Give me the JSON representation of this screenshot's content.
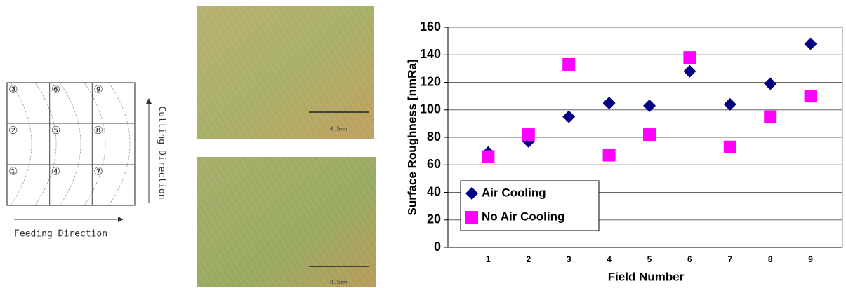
{
  "diagram": {
    "cells": [
      [
        "③",
        "⑥",
        "⑨"
      ],
      [
        "②",
        "⑤",
        "⑧"
      ],
      [
        "①",
        "④",
        "⑦"
      ]
    ],
    "feeding_label": "Feeding Direction",
    "cutting_label": "Cutting Direction"
  },
  "micrographs": [
    {
      "scale_label": "0.5mm"
    },
    {
      "scale_label": "0.5mm"
    }
  ],
  "chart_data": {
    "type": "scatter",
    "xlabel": "Field Number",
    "ylabel": "Surface Roughness [nmRa]",
    "categories": [
      "1",
      "2",
      "3",
      "4",
      "5",
      "6",
      "7",
      "8",
      "9"
    ],
    "series": [
      {
        "name": "Air Cooling",
        "color": "#000080",
        "marker": "diamond",
        "values": [
          69,
          77,
          95,
          105,
          103,
          128,
          104,
          119,
          148
        ]
      },
      {
        "name": "No Air Cooling",
        "color": "#ff00ff",
        "marker": "square",
        "values": [
          66,
          82,
          133,
          67,
          82,
          138,
          73,
          95,
          110
        ]
      }
    ],
    "ylim": [
      0,
      160
    ],
    "yticks": [
      0,
      20,
      40,
      60,
      80,
      100,
      120,
      140,
      160
    ],
    "grid": true,
    "legend": "lower-left"
  }
}
